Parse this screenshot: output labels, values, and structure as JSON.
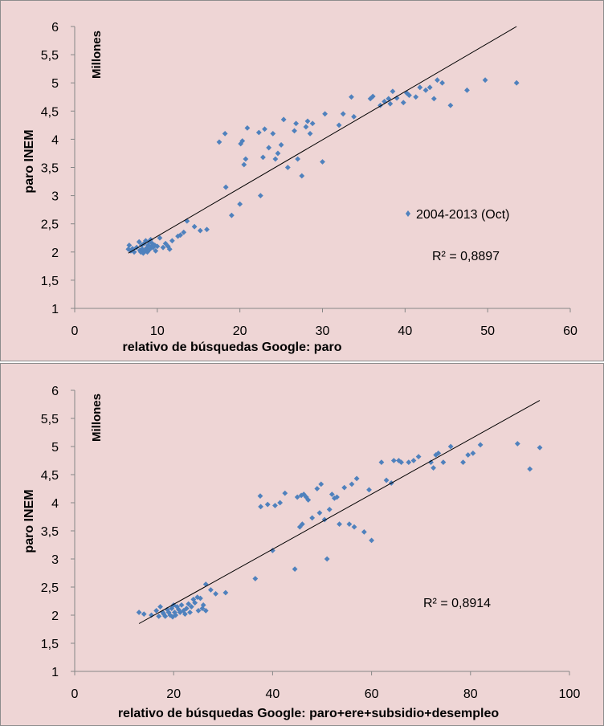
{
  "chart_data": [
    {
      "type": "scatter",
      "id": "top",
      "xlabel": "relativo de búsquedas Google: paro",
      "ylabel": "paro INEM",
      "yunit": "Millones",
      "xlim": [
        0,
        60
      ],
      "ylim": [
        1,
        6
      ],
      "xticks": [
        0,
        10,
        20,
        30,
        40,
        50,
        60
      ],
      "yticks": [
        "1",
        "1,5",
        "2",
        "2,5",
        "3",
        "3,5",
        "4",
        "4,5",
        "5",
        "5,5",
        "6"
      ],
      "legend": {
        "label": "2004-2013 (Oct)",
        "placement": "right-middle"
      },
      "r2_label": "R² = 0,8897",
      "trendline": {
        "x": [
          6.5,
          53.5
        ],
        "y": [
          1.98,
          6.0
        ]
      },
      "series": [
        {
          "name": "2004-2013 (Oct)",
          "color": "#4f81bd",
          "points": [
            [
              6.5,
              2.05
            ],
            [
              6.6,
              2.12
            ],
            [
              6.8,
              2.02
            ],
            [
              7.0,
              2.06
            ],
            [
              7.2,
              2.0
            ],
            [
              7.5,
              2.08
            ],
            [
              7.8,
              2.18
            ],
            [
              7.9,
              2.03
            ],
            [
              8.0,
              2.0
            ],
            [
              8.1,
              2.12
            ],
            [
              8.2,
              2.05
            ],
            [
              8.3,
              1.98
            ],
            [
              8.4,
              2.15
            ],
            [
              8.5,
              2.02
            ],
            [
              8.6,
              2.2
            ],
            [
              8.7,
              2.07
            ],
            [
              8.8,
              2.0
            ],
            [
              8.9,
              2.12
            ],
            [
              9.0,
              2.18
            ],
            [
              9.1,
              2.05
            ],
            [
              9.2,
              2.22
            ],
            [
              9.3,
              2.1
            ],
            [
              9.4,
              2.15
            ],
            [
              9.5,
              2.08
            ],
            [
              9.7,
              2.12
            ],
            [
              9.8,
              2.02
            ],
            [
              10.0,
              2.1
            ],
            [
              10.3,
              2.25
            ],
            [
              10.7,
              2.08
            ],
            [
              11.0,
              2.15
            ],
            [
              11.3,
              2.1
            ],
            [
              11.5,
              2.05
            ],
            [
              11.8,
              2.2
            ],
            [
              12.5,
              2.28
            ],
            [
              12.8,
              2.3
            ],
            [
              13.2,
              2.35
            ],
            [
              13.6,
              2.55
            ],
            [
              14.5,
              2.45
            ],
            [
              15.2,
              2.38
            ],
            [
              16.0,
              2.4
            ],
            [
              17.5,
              3.95
            ],
            [
              18.2,
              4.1
            ],
            [
              18.3,
              3.15
            ],
            [
              19.0,
              2.65
            ],
            [
              20.0,
              2.85
            ],
            [
              20.1,
              3.92
            ],
            [
              20.3,
              3.97
            ],
            [
              20.5,
              3.55
            ],
            [
              20.7,
              3.65
            ],
            [
              20.9,
              4.2
            ],
            [
              22.3,
              4.12
            ],
            [
              22.5,
              3.0
            ],
            [
              22.8,
              3.68
            ],
            [
              23.0,
              4.18
            ],
            [
              23.5,
              3.85
            ],
            [
              24.0,
              4.1
            ],
            [
              24.3,
              3.65
            ],
            [
              24.6,
              3.75
            ],
            [
              25.0,
              3.9
            ],
            [
              25.3,
              4.35
            ],
            [
              25.8,
              3.5
            ],
            [
              26.6,
              4.15
            ],
            [
              26.8,
              4.28
            ],
            [
              27.0,
              3.65
            ],
            [
              27.5,
              3.35
            ],
            [
              28.0,
              4.22
            ],
            [
              28.2,
              4.32
            ],
            [
              28.5,
              4.1
            ],
            [
              28.8,
              4.28
            ],
            [
              30.0,
              3.6
            ],
            [
              30.3,
              4.45
            ],
            [
              32.0,
              4.25
            ],
            [
              32.5,
              4.45
            ],
            [
              33.5,
              4.75
            ],
            [
              33.8,
              4.4
            ],
            [
              35.8,
              4.72
            ],
            [
              36.1,
              4.76
            ],
            [
              37.0,
              4.6
            ],
            [
              37.5,
              4.67
            ],
            [
              38.0,
              4.72
            ],
            [
              38.2,
              4.63
            ],
            [
              38.5,
              4.85
            ],
            [
              39.0,
              4.73
            ],
            [
              39.8,
              4.65
            ],
            [
              40.2,
              4.82
            ],
            [
              40.5,
              4.78
            ],
            [
              41.3,
              4.75
            ],
            [
              41.8,
              4.92
            ],
            [
              42.5,
              4.87
            ],
            [
              43.0,
              4.92
            ],
            [
              43.5,
              4.72
            ],
            [
              43.9,
              5.05
            ],
            [
              44.5,
              5.0
            ],
            [
              45.5,
              4.6
            ],
            [
              47.5,
              4.87
            ],
            [
              49.7,
              5.05
            ],
            [
              53.5,
              5.0
            ]
          ]
        }
      ]
    },
    {
      "type": "scatter",
      "id": "bottom",
      "xlabel": "relativo de búsquedas Google: paro+ere+subsidio+desempleo",
      "ylabel": "paro INEM",
      "yunit": "Millones",
      "xlim": [
        0,
        100
      ],
      "ylim": [
        1,
        6
      ],
      "xticks": [
        0,
        20,
        40,
        60,
        80,
        100
      ],
      "yticks": [
        "1",
        "1,5",
        "2",
        "2,5",
        "3",
        "3,5",
        "4",
        "4,5",
        "5",
        "5,5",
        "6"
      ],
      "r2_label": "R² = 0,8914",
      "trendline": {
        "x": [
          13.0,
          94.0
        ],
        "y": [
          1.85,
          5.82
        ]
      },
      "series": [
        {
          "name": "2004-2013 (Oct)",
          "color": "#4f81bd",
          "points": [
            [
              13.0,
              2.05
            ],
            [
              14.0,
              2.02
            ],
            [
              15.5,
              2.0
            ],
            [
              16.5,
              2.08
            ],
            [
              17.0,
              1.98
            ],
            [
              17.3,
              2.15
            ],
            [
              17.8,
              2.05
            ],
            [
              18.0,
              2.02
            ],
            [
              18.3,
              1.98
            ],
            [
              18.7,
              2.1
            ],
            [
              19.0,
              2.05
            ],
            [
              19.3,
              2.0
            ],
            [
              19.6,
              2.12
            ],
            [
              19.8,
              1.97
            ],
            [
              20.0,
              2.18
            ],
            [
              20.2,
              2.05
            ],
            [
              20.4,
              2.0
            ],
            [
              20.7,
              2.15
            ],
            [
              21.0,
              2.1
            ],
            [
              21.3,
              2.05
            ],
            [
              21.6,
              2.18
            ],
            [
              22.0,
              2.08
            ],
            [
              22.3,
              2.02
            ],
            [
              22.6,
              2.12
            ],
            [
              23.0,
              2.2
            ],
            [
              23.3,
              2.05
            ],
            [
              23.6,
              2.15
            ],
            [
              24.0,
              2.28
            ],
            [
              24.3,
              2.22
            ],
            [
              24.8,
              2.32
            ],
            [
              25.0,
              2.08
            ],
            [
              25.4,
              2.3
            ],
            [
              25.8,
              2.12
            ],
            [
              26.0,
              2.18
            ],
            [
              26.5,
              2.08
            ],
            [
              26.5,
              2.55
            ],
            [
              27.5,
              2.45
            ],
            [
              28.5,
              2.38
            ],
            [
              30.5,
              2.4
            ],
            [
              36.5,
              2.65
            ],
            [
              37.5,
              4.12
            ],
            [
              37.6,
              3.93
            ],
            [
              39.0,
              3.97
            ],
            [
              40.0,
              3.15
            ],
            [
              40.5,
              3.95
            ],
            [
              41.5,
              4.0
            ],
            [
              42.5,
              4.17
            ],
            [
              44.5,
              2.82
            ],
            [
              45.0,
              4.1
            ],
            [
              45.5,
              3.57
            ],
            [
              45.8,
              4.13
            ],
            [
              46.0,
              3.62
            ],
            [
              46.3,
              4.15
            ],
            [
              46.8,
              4.1
            ],
            [
              47.2,
              4.05
            ],
            [
              48.0,
              3.73
            ],
            [
              49.0,
              4.25
            ],
            [
              49.5,
              3.82
            ],
            [
              49.8,
              4.33
            ],
            [
              50.5,
              3.7
            ],
            [
              51.0,
              3.0
            ],
            [
              51.5,
              3.88
            ],
            [
              52.0,
              4.15
            ],
            [
              52.5,
              4.08
            ],
            [
              53.0,
              4.1
            ],
            [
              53.5,
              3.62
            ],
            [
              54.5,
              4.27
            ],
            [
              55.5,
              3.62
            ],
            [
              56.0,
              4.33
            ],
            [
              56.5,
              3.57
            ],
            [
              57.0,
              4.43
            ],
            [
              58.5,
              3.48
            ],
            [
              59.5,
              4.23
            ],
            [
              60.0,
              3.33
            ],
            [
              62.0,
              4.72
            ],
            [
              63.0,
              4.4
            ],
            [
              64.0,
              4.35
            ],
            [
              64.5,
              4.75
            ],
            [
              65.5,
              4.75
            ],
            [
              66.0,
              4.72
            ],
            [
              67.5,
              4.72
            ],
            [
              68.5,
              4.75
            ],
            [
              69.5,
              4.82
            ],
            [
              72.0,
              4.72
            ],
            [
              72.5,
              4.62
            ],
            [
              73.0,
              4.85
            ],
            [
              73.5,
              4.88
            ],
            [
              74.5,
              4.72
            ],
            [
              76.0,
              5.0
            ],
            [
              78.5,
              4.72
            ],
            [
              79.5,
              4.85
            ],
            [
              80.5,
              4.88
            ],
            [
              82.0,
              5.03
            ],
            [
              89.5,
              5.05
            ],
            [
              92.0,
              4.6
            ],
            [
              94.0,
              4.98
            ]
          ]
        }
      ]
    }
  ]
}
